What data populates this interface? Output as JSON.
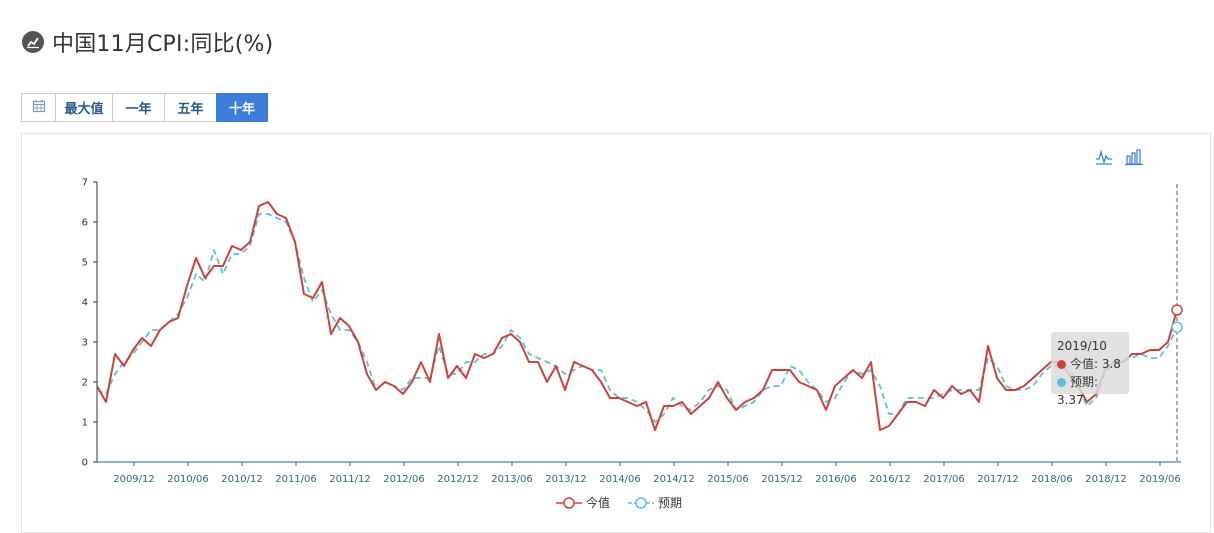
{
  "header": {
    "title": "中国11月CPI:同比(%)",
    "icon": "chart-icon"
  },
  "range_buttons": [
    {
      "label": "",
      "icon": "calendar-icon",
      "active": false
    },
    {
      "label": "最大值",
      "active": false
    },
    {
      "label": "一年",
      "active": false
    },
    {
      "label": "五年",
      "active": false
    },
    {
      "label": "十年",
      "active": true
    }
  ],
  "toolbox": {
    "line_icon": "line-chart-icon",
    "bar_icon": "bar-chart-icon"
  },
  "colors": {
    "actual": "#d0413a",
    "forecast": "#5bc0de",
    "active_button": "#3b7dd8",
    "axis": "#2a6a8a"
  },
  "tooltip": {
    "date": "2019/10",
    "actual_label": "今值: 3.8",
    "forecast_label": "预期: 3.37"
  },
  "chart_data": {
    "type": "line",
    "title": "中国11月CPI:同比(%)",
    "ylim": [
      0,
      7
    ],
    "yticks": [
      0,
      1,
      2,
      3,
      4,
      5,
      6,
      7
    ],
    "xtick_labels": [
      "2009/12",
      "2010/06",
      "2010/12",
      "2011/06",
      "2011/12",
      "2012/06",
      "2012/12",
      "2013/06",
      "2013/12",
      "2014/06",
      "2014/12",
      "2015/06",
      "2015/12",
      "2016/06",
      "2016/12",
      "2017/06",
      "2017/12",
      "2018/06",
      "2018/12",
      "2019/06"
    ],
    "x_start": "2009/11",
    "legend": [
      "今值",
      "预期"
    ],
    "legend_position": "bottom-center",
    "series": [
      {
        "name": "今值",
        "values": [
          1.9,
          1.5,
          2.7,
          2.4,
          2.8,
          3.1,
          2.9,
          3.3,
          3.5,
          3.6,
          4.4,
          5.1,
          4.6,
          4.9,
          4.9,
          5.4,
          5.3,
          5.5,
          6.4,
          6.5,
          6.2,
          6.1,
          5.5,
          4.2,
          4.1,
          4.5,
          3.2,
          3.6,
          3.4,
          3.0,
          2.2,
          1.8,
          2.0,
          1.9,
          1.7,
          2.0,
          2.5,
          2.0,
          3.2,
          2.1,
          2.4,
          2.1,
          2.7,
          2.6,
          2.7,
          3.1,
          3.2,
          3.0,
          2.5,
          2.5,
          2.0,
          2.4,
          1.8,
          2.5,
          2.4,
          2.3,
          2.0,
          1.6,
          1.6,
          1.5,
          1.4,
          1.5,
          0.8,
          1.4,
          1.4,
          1.5,
          1.2,
          1.4,
          1.6,
          2.0,
          1.6,
          1.3,
          1.5,
          1.6,
          1.8,
          2.3,
          2.3,
          2.3,
          2.0,
          1.9,
          1.8,
          1.3,
          1.9,
          2.1,
          2.3,
          2.1,
          2.5,
          0.8,
          0.9,
          1.2,
          1.5,
          1.5,
          1.4,
          1.8,
          1.6,
          1.9,
          1.7,
          1.8,
          1.5,
          2.9,
          2.1,
          1.8,
          1.8,
          1.9,
          2.1,
          2.3,
          2.5,
          2.5,
          2.2,
          1.9,
          1.5,
          1.7,
          2.3,
          2.5,
          2.5,
          2.7,
          2.7,
          2.8,
          2.8,
          3.0,
          3.8
        ]
      },
      {
        "name": "预期",
        "values": [
          1.8,
          1.7,
          2.2,
          2.5,
          2.7,
          3.0,
          3.3,
          3.3,
          3.5,
          3.7,
          4.1,
          4.7,
          4.5,
          5.3,
          4.7,
          5.2,
          5.2,
          5.4,
          6.2,
          6.2,
          6.1,
          6.0,
          5.5,
          4.6,
          4.0,
          4.3,
          3.7,
          3.3,
          3.3,
          3.0,
          2.5,
          1.8,
          2.0,
          1.9,
          1.8,
          2.1,
          2.1,
          2.1,
          2.9,
          2.2,
          2.2,
          2.5,
          2.5,
          2.7,
          2.7,
          2.9,
          3.3,
          3.1,
          2.7,
          2.6,
          2.5,
          2.4,
          2.2,
          2.3,
          2.4,
          2.3,
          2.3,
          1.8,
          1.6,
          1.6,
          1.5,
          1.3,
          1.0,
          1.2,
          1.6,
          1.4,
          1.3,
          1.5,
          1.8,
          1.9,
          1.8,
          1.3,
          1.4,
          1.5,
          1.8,
          1.9,
          1.9,
          2.4,
          2.3,
          2.0,
          1.8,
          1.5,
          1.6,
          2.0,
          2.3,
          2.2,
          2.3,
          1.9,
          1.2,
          1.2,
          1.6,
          1.6,
          1.6,
          1.6,
          1.7,
          1.8,
          1.8,
          1.8,
          1.8,
          2.6,
          2.4,
          1.9,
          1.8,
          1.8,
          1.9,
          2.2,
          2.4,
          2.4,
          2.4,
          1.9,
          1.4,
          1.6,
          2.2,
          2.5,
          2.5,
          2.6,
          2.7,
          2.6,
          2.6,
          2.9,
          3.37
        ]
      }
    ]
  }
}
